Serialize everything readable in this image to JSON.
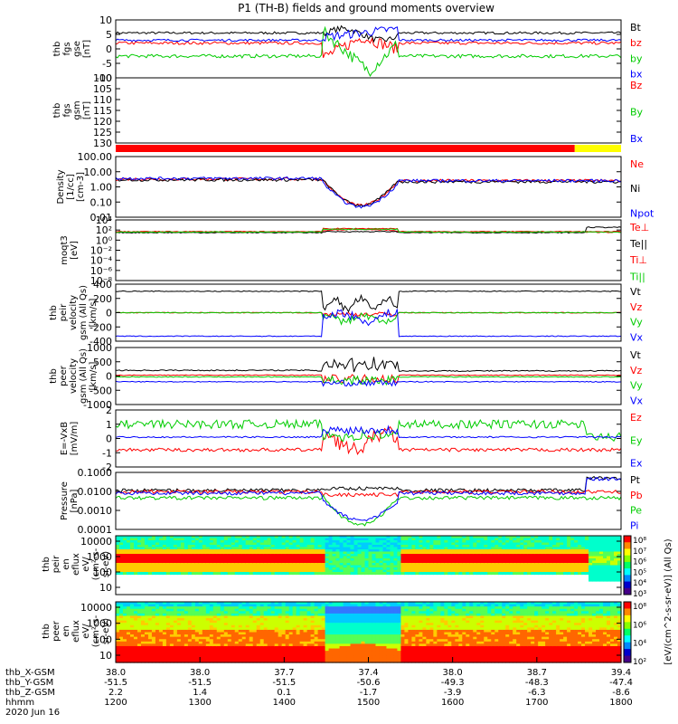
{
  "title": "P1 (TH-B) fields and ground moments overview",
  "colors": {
    "black": "#000000",
    "red": "#ff0000",
    "green": "#00cc00",
    "blue": "#0000ff",
    "yellow": "#ffff00"
  },
  "chart_data": [
    {
      "type": "line",
      "id": "fgs",
      "ylabel": [
        "thb",
        "fgs",
        "gse",
        "[nT]"
      ],
      "ylim": [
        -10,
        10
      ],
      "yticks": [
        "10",
        "5",
        "0",
        "-5",
        "-10"
      ],
      "series": [
        {
          "name": "Bt",
          "color": "#000000"
        },
        {
          "name": "bz",
          "color": "#ff0000"
        },
        {
          "name": "by",
          "color": "#00cc00"
        },
        {
          "name": "bx",
          "color": "#0000ff"
        }
      ]
    },
    {
      "type": "line",
      "id": "fgs_gsm",
      "ylabel": [
        "thb",
        "fgs",
        "gsm",
        "[nT]"
      ],
      "ylim": [
        135,
        100
      ],
      "yticks": [
        "100",
        "105",
        "110",
        "115",
        "120",
        "125",
        "130"
      ],
      "series": [
        {
          "name": "Bz",
          "color": "#ff0000"
        },
        {
          "name": "By",
          "color": "#00cc00"
        },
        {
          "name": "Bx",
          "color": "#0000ff"
        }
      ]
    },
    {
      "type": "bar",
      "id": "mode_bar",
      "segments": [
        {
          "from": "1200",
          "to": "1745",
          "color": "#ff0000"
        },
        {
          "from": "1745",
          "to": "1800",
          "color": "#ffff00"
        }
      ]
    },
    {
      "type": "line",
      "id": "density",
      "ylabel": [
        "Density",
        "[1/cc]",
        "[cm-3]"
      ],
      "yscale": "log",
      "yticks": [
        "100.00",
        "10.00",
        "1.00",
        "0.10",
        "0.01"
      ],
      "series": [
        {
          "name": "Ne",
          "color": "#ff0000"
        },
        {
          "name": "Ni",
          "color": "#000000"
        },
        {
          "name": "Npot",
          "color": "#0000ff"
        }
      ]
    },
    {
      "type": "line",
      "id": "temperature",
      "ylabel": [
        "moqt3",
        "[eV]"
      ],
      "yscale": "log",
      "yticks": [
        "10⁴",
        "10²",
        "10⁰",
        "10⁻²",
        "10⁻⁴",
        "10⁻⁶",
        "10⁻⁸"
      ],
      "series": [
        {
          "name": "Te⊥",
          "color": "#ff0000"
        },
        {
          "name": "Te||",
          "color": "#000000"
        },
        {
          "name": "Ti⊥",
          "color": "#ff0000"
        },
        {
          "name": "Ti||",
          "color": "#00cc00"
        }
      ]
    },
    {
      "type": "line",
      "id": "peir_velocity",
      "ylabel": [
        "thb",
        "peir",
        "velocity",
        "gsm (All Qs)",
        "[km/s]"
      ],
      "ylim": [
        -400,
        400
      ],
      "yticks": [
        "400",
        "200",
        "0",
        "-200",
        "-400"
      ],
      "series": [
        {
          "name": "Vt",
          "color": "#000000"
        },
        {
          "name": "Vz",
          "color": "#ff0000"
        },
        {
          "name": "Vy",
          "color": "#00cc00"
        },
        {
          "name": "Vx",
          "color": "#0000ff"
        }
      ]
    },
    {
      "type": "line",
      "id": "peer_velocity",
      "ylabel": [
        "thb",
        "peer",
        "velocity",
        "gsm (All Qs)",
        "[km/s]"
      ],
      "ylim": [
        -1000,
        1000
      ],
      "yticks": [
        "1000",
        "500",
        "0",
        "-500",
        "-1000"
      ],
      "series": [
        {
          "name": "Vt",
          "color": "#000000"
        },
        {
          "name": "Vz",
          "color": "#ff0000"
        },
        {
          "name": "Vy",
          "color": "#00cc00"
        },
        {
          "name": "Vx",
          "color": "#0000ff"
        }
      ]
    },
    {
      "type": "line",
      "id": "efield",
      "ylabel": [
        "E=-VxB",
        "[mV/m]"
      ],
      "ylim": [
        -2,
        2
      ],
      "yticks": [
        "2",
        "1",
        "0",
        "-1",
        "-2"
      ],
      "series": [
        {
          "name": "Ez",
          "color": "#ff0000"
        },
        {
          "name": "Ey",
          "color": "#00cc00"
        },
        {
          "name": "Ex",
          "color": "#0000ff"
        }
      ]
    },
    {
      "type": "line",
      "id": "pressure",
      "ylabel": [
        "Pressure",
        "[nPa]"
      ],
      "yscale": "log",
      "yticks": [
        "0.1000",
        "0.0100",
        "0.0010",
        "0.0001"
      ],
      "series": [
        {
          "name": "Pt",
          "color": "#000000"
        },
        {
          "name": "Pb",
          "color": "#ff0000"
        },
        {
          "name": "Pe",
          "color": "#00cc00"
        },
        {
          "name": "Pi",
          "color": "#0000ff"
        }
      ]
    },
    {
      "type": "heatmap",
      "id": "peir_spec",
      "ylabel": [
        "thb",
        "peir",
        "en",
        "eflux",
        "eV/",
        "(cm²-s-",
        "sr-eV)"
      ],
      "yscale": "log",
      "yticks": [
        "10000",
        "1000",
        "100",
        "10"
      ]
    },
    {
      "type": "heatmap",
      "id": "peer_spec",
      "ylabel": [
        "thb",
        "peer",
        "en",
        "eflux",
        "eV/",
        "(cm²-s-",
        "sr-eV)"
      ],
      "yscale": "log",
      "yticks": [
        "10000",
        "1000",
        "100",
        "10"
      ]
    }
  ],
  "colorbar": {
    "label": "[eV/(cm^2-s-sr-eV)] (All Qs)",
    "ticks1": [
      "10⁸",
      "10⁷",
      "10⁶",
      "10⁵",
      "10⁴",
      "10³"
    ],
    "ticks2": [
      "10⁸",
      "10⁶",
      "10⁴",
      "10²"
    ]
  },
  "xaxis": {
    "rows": [
      {
        "label": "thb_X-GSM",
        "values": [
          "38.0",
          "38.0",
          "37.7",
          "37.4",
          "38.0",
          "38.7",
          "39.4"
        ]
      },
      {
        "label": "thb_Y-GSM",
        "values": [
          "-51.5",
          "-51.5",
          "-51.5",
          "-50.6",
          "-49.3",
          "-48.3",
          "-47.4"
        ]
      },
      {
        "label": "thb_Z-GSM",
        "values": [
          "2.2",
          "1.4",
          "0.1",
          "-1.7",
          "-3.9",
          "-6.3",
          "-8.6"
        ]
      },
      {
        "label": "hhmm",
        "values": [
          "1200",
          "1300",
          "1400",
          "1500",
          "1600",
          "1700",
          "1800"
        ]
      }
    ],
    "date": "2020 Jun 16"
  }
}
